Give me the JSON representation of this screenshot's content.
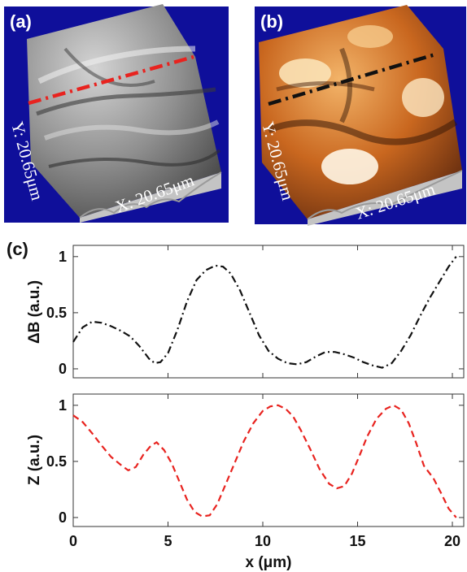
{
  "panels": {
    "a": {
      "label": "(a)",
      "y_dim": "Y: 20.65μm",
      "x_dim": "X: 20.65μm",
      "line_color": "#e8231f",
      "colormap": "gray"
    },
    "b": {
      "label": "(b)",
      "y_dim": "Y: 20.65μm",
      "x_dim": "X: 20.65μm",
      "line_color": "#111111",
      "colormap": "copper"
    },
    "c": {
      "label": "(c)"
    }
  },
  "chart_data": [
    {
      "type": "line",
      "ylabel": "ΔB (a.u.)",
      "xlim": [
        0,
        20.6
      ],
      "ylim": [
        -0.08,
        1.1
      ],
      "yticks": [
        "0",
        "0.5",
        "1"
      ],
      "xticklabels_visible": false,
      "line_style": "dash-dot",
      "color": "#111111",
      "x": [
        0,
        0.5,
        1,
        1.5,
        2,
        2.5,
        3,
        3.5,
        4,
        4.3,
        4.6,
        5,
        5.5,
        6,
        6.5,
        7,
        7.5,
        7.9,
        8.3,
        8.8,
        9.3,
        9.8,
        10.3,
        10.8,
        11.3,
        11.8,
        12.3,
        12.8,
        13.3,
        13.8,
        14.3,
        14.8,
        15.3,
        15.8,
        16.3,
        16.8,
        17.3,
        17.8,
        18.3,
        18.8,
        19.3,
        19.8,
        20.2
      ],
      "y": [
        0.24,
        0.37,
        0.42,
        0.41,
        0.38,
        0.34,
        0.29,
        0.2,
        0.09,
        0.05,
        0.06,
        0.14,
        0.35,
        0.6,
        0.79,
        0.88,
        0.92,
        0.91,
        0.85,
        0.7,
        0.5,
        0.3,
        0.16,
        0.09,
        0.05,
        0.04,
        0.06,
        0.11,
        0.15,
        0.15,
        0.13,
        0.1,
        0.06,
        0.03,
        0.01,
        0.05,
        0.16,
        0.3,
        0.47,
        0.63,
        0.77,
        0.91,
        1.0
      ]
    },
    {
      "type": "line",
      "ylabel": "Z (a.u.)",
      "xlabel": "x (μm)",
      "xlim": [
        0,
        20.6
      ],
      "ylim": [
        -0.08,
        1.1
      ],
      "xticks": [
        "0",
        "5",
        "10",
        "15",
        "20"
      ],
      "yticks": [
        "0",
        "0.5",
        "1"
      ],
      "line_style": "dashed",
      "color": "#e8231f",
      "x": [
        0,
        0.5,
        1,
        1.5,
        2,
        2.5,
        2.9,
        3.3,
        3.7,
        4.1,
        4.4,
        4.8,
        5.2,
        5.6,
        6,
        6.4,
        6.8,
        7.2,
        7.6,
        8,
        8.5,
        9,
        9.5,
        10,
        10.4,
        10.8,
        11.2,
        11.6,
        12,
        12.5,
        13,
        13.5,
        13.9,
        14.3,
        14.7,
        15.1,
        15.5,
        16,
        16.5,
        16.9,
        17.3,
        17.7,
        18.1,
        18.5,
        19,
        19.4,
        19.8,
        20.2
      ],
      "y": [
        0.91,
        0.85,
        0.75,
        0.64,
        0.54,
        0.47,
        0.42,
        0.45,
        0.56,
        0.64,
        0.67,
        0.6,
        0.48,
        0.32,
        0.16,
        0.05,
        0.01,
        0.02,
        0.12,
        0.28,
        0.48,
        0.68,
        0.84,
        0.95,
        0.99,
        1.0,
        0.97,
        0.9,
        0.78,
        0.61,
        0.43,
        0.3,
        0.26,
        0.28,
        0.39,
        0.55,
        0.72,
        0.88,
        0.97,
        1.0,
        0.96,
        0.84,
        0.66,
        0.46,
        0.35,
        0.22,
        0.08,
        0.0
      ]
    }
  ]
}
